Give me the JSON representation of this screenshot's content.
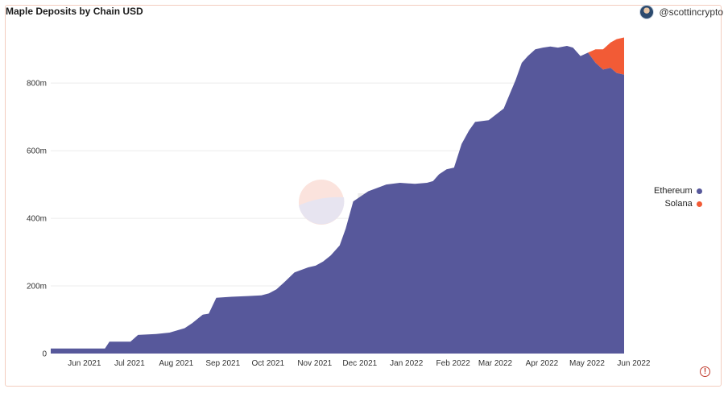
{
  "header": {
    "title": "Maple Deposits by Chain USD",
    "author": "@scottincrypto"
  },
  "watermark": {
    "text": "Dune"
  },
  "colors": {
    "ethereum": "#57589b",
    "solana": "#f25b36",
    "grid": "#ececec"
  },
  "chart_data": {
    "type": "area",
    "stacked": true,
    "title": "Maple Deposits by Chain USD",
    "xlabel": "",
    "ylabel": "",
    "ylim": [
      0,
      960
    ],
    "y_ticks": [
      0,
      200,
      400,
      600,
      800
    ],
    "y_tick_labels": [
      "0",
      "200m",
      "400m",
      "600m",
      "800m"
    ],
    "x_tick_labels": [
      "Jun 2021",
      "Jul 2021",
      "Aug 2021",
      "Sep 2021",
      "Oct 2021",
      "Nov 2021",
      "Dec 2021",
      "Jan 2022",
      "Feb 2022",
      "Mar 2022",
      "Apr 2022",
      "May 2022",
      "Jun 2022"
    ],
    "grid": true,
    "legend_position": "right",
    "x": [
      "2021-05-23",
      "2021-06-01",
      "2021-06-15",
      "2021-06-28",
      "2021-07-01",
      "2021-07-15",
      "2021-07-20",
      "2021-08-01",
      "2021-08-10",
      "2021-08-20",
      "2021-08-25",
      "2021-09-01",
      "2021-09-05",
      "2021-09-10",
      "2021-09-20",
      "2021-10-01",
      "2021-10-10",
      "2021-10-15",
      "2021-10-20",
      "2021-10-25",
      "2021-11-01",
      "2021-11-10",
      "2021-11-15",
      "2021-11-20",
      "2021-11-25",
      "2021-12-01",
      "2021-12-05",
      "2021-12-10",
      "2021-12-15",
      "2021-12-20",
      "2022-01-01",
      "2022-01-10",
      "2022-01-20",
      "2022-01-28",
      "2022-02-01",
      "2022-02-05",
      "2022-02-10",
      "2022-02-15",
      "2022-02-20",
      "2022-02-25",
      "2022-03-01",
      "2022-03-10",
      "2022-03-20",
      "2022-03-28",
      "2022-04-01",
      "2022-04-05",
      "2022-04-10",
      "2022-04-15",
      "2022-04-20",
      "2022-04-25",
      "2022-05-01",
      "2022-05-05",
      "2022-05-10",
      "2022-05-15",
      "2022-05-20",
      "2022-05-25",
      "2022-05-30",
      "2022-06-03",
      "2022-06-08"
    ],
    "series": [
      {
        "name": "Ethereum",
        "values": [
          15,
          15,
          15,
          15,
          35,
          35,
          55,
          58,
          62,
          75,
          90,
          115,
          118,
          165,
          168,
          170,
          172,
          178,
          190,
          210,
          240,
          255,
          260,
          272,
          290,
          320,
          370,
          450,
          465,
          480,
          500,
          505,
          502,
          505,
          510,
          530,
          545,
          550,
          620,
          660,
          685,
          690,
          725,
          810,
          860,
          880,
          900,
          905,
          908,
          905,
          910,
          905,
          880,
          890,
          860,
          840,
          845,
          830,
          825
        ]
      },
      {
        "name": "Solana",
        "values": [
          0,
          0,
          0,
          0,
          0,
          0,
          0,
          0,
          0,
          0,
          0,
          0,
          0,
          0,
          0,
          0,
          0,
          0,
          0,
          0,
          0,
          0,
          0,
          0,
          0,
          0,
          0,
          0,
          0,
          0,
          0,
          0,
          0,
          0,
          0,
          0,
          0,
          0,
          0,
          0,
          0,
          0,
          0,
          0,
          0,
          0,
          0,
          0,
          0,
          0,
          0,
          0,
          0,
          0,
          40,
          60,
          75,
          100,
          110
        ]
      }
    ]
  },
  "legend": {
    "items": [
      {
        "label": "Ethereum"
      },
      {
        "label": "Solana"
      }
    ]
  }
}
